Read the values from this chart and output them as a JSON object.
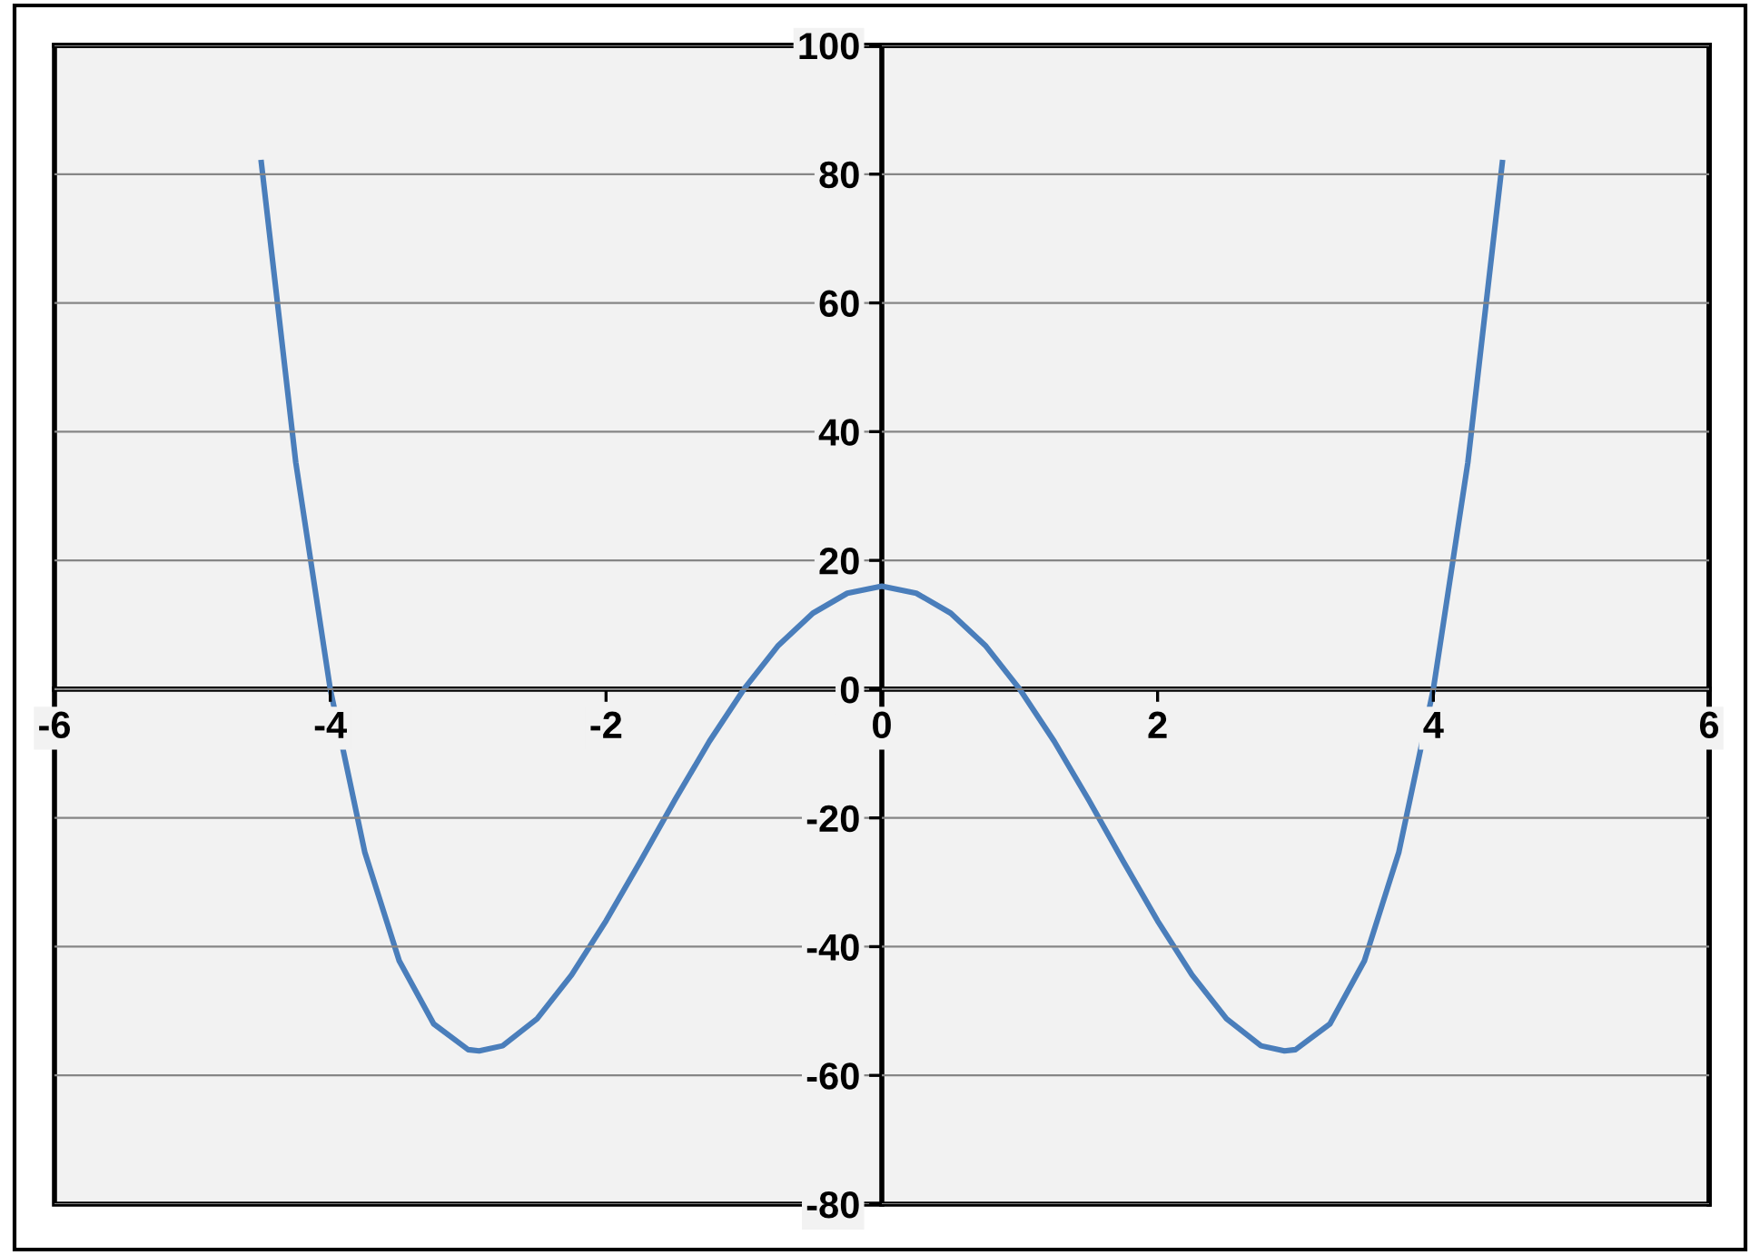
{
  "chart_data": {
    "type": "line",
    "x": [
      -4.5,
      -4.25,
      -4,
      -3.75,
      -3.5,
      -3.25,
      -3,
      -2.92,
      -2.75,
      -2.5,
      -2.25,
      -2,
      -1.75,
      -1.5,
      -1.25,
      -1,
      -0.75,
      -0.5,
      -0.25,
      0,
      0.25,
      0.5,
      0.75,
      1,
      1.25,
      1.5,
      1.75,
      2,
      2.25,
      2.5,
      2.75,
      2.92,
      3,
      3.25,
      3.5,
      3.75,
      4,
      4.25,
      4.5
    ],
    "series": [
      {
        "color": "#4a7ebb",
        "values": [
          81.8,
          35.2,
          0,
          -25.3,
          -42.2,
          -52,
          -56,
          -56.2,
          -55.4,
          -51.2,
          -44.4,
          -36,
          -26.7,
          -17.2,
          -8.1,
          0,
          6.8,
          11.8,
          14.9,
          16,
          14.9,
          11.8,
          6.8,
          0,
          -8.1,
          -17.2,
          -26.7,
          -36,
          -44.4,
          -51.2,
          -55.4,
          -56.2,
          -56,
          -52,
          -42.2,
          -25.3,
          0,
          35.2,
          81.8
        ]
      }
    ],
    "xlim": [
      -6,
      6
    ],
    "xticks": [
      -6,
      -4,
      -2,
      0,
      2,
      4,
      6
    ],
    "ylim": [
      -80,
      100
    ],
    "yticks": [
      -80,
      -60,
      -40,
      -20,
      0,
      20,
      40,
      60,
      80,
      100
    ],
    "grid": "y",
    "marker": "none",
    "line_style": "solid"
  }
}
